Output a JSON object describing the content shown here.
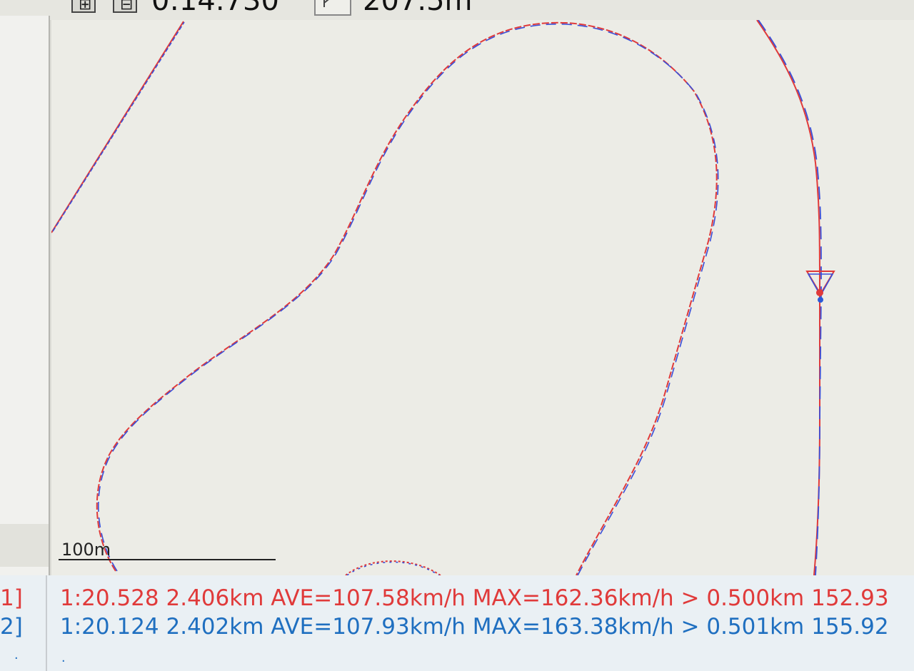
{
  "toolbar": {
    "time_value": "0:14.730",
    "distance_value": "207.5m",
    "zoom_in_icon": "plus-box-icon",
    "zoom_out_icon": "minus-box-icon",
    "tool_icon": "pointer-tool-icon"
  },
  "map": {
    "scale_label": "100m",
    "colors": {
      "lap1": "#e03a3a",
      "lap2": "#3a4fd8"
    }
  },
  "laps": [
    {
      "index": "1]",
      "summary": "1:20.528 2.406km AVE=107.58km/h MAX=162.36km/h > 0.500km 152.93"
    },
    {
      "index": "2]",
      "summary": "1:20.124 2.402km AVE=107.93km/h MAX=163.38km/h > 0.501km 155.92"
    }
  ],
  "footer": {
    "dot1": ".",
    "dot2": "."
  }
}
